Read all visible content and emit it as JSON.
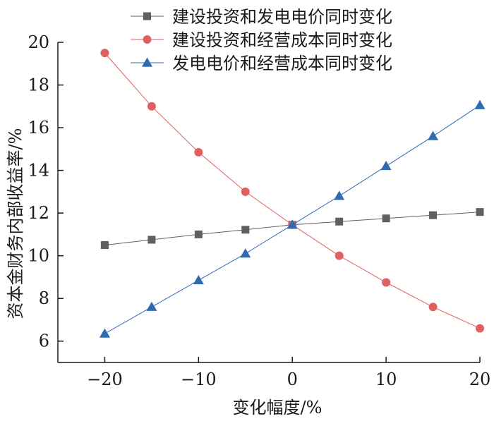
{
  "chart_data": {
    "type": "line",
    "title": "",
    "xlabel": "变化幅度/%",
    "ylabel": "资本金财务内部收益率/%",
    "xlim": [
      -25,
      20
    ],
    "ylim": [
      5,
      20
    ],
    "x": [
      -20,
      -15,
      -10,
      -5,
      0,
      5,
      10,
      15,
      20
    ],
    "x_ticks": [
      -20,
      -10,
      0,
      10,
      20
    ],
    "x_tick_labels": [
      "−20",
      "−10",
      "0",
      "10",
      "20"
    ],
    "y_ticks": [
      6,
      8,
      10,
      12,
      14,
      16,
      18,
      20
    ],
    "y_tick_labels": [
      "6",
      "8",
      "10",
      "12",
      "14",
      "16",
      "18",
      "20"
    ],
    "grid": false,
    "legend_position": "top-right",
    "series": [
      {
        "name": "建设投资和发电电价同时变化",
        "marker": "square",
        "color": "#606060",
        "values": [
          10.5,
          10.75,
          11.0,
          11.22,
          11.45,
          11.6,
          11.75,
          11.9,
          12.05
        ]
      },
      {
        "name": "建设投资和经营成本同时变化",
        "marker": "circle",
        "color": "#e06060",
        "values": [
          19.5,
          17.0,
          14.85,
          13.0,
          11.45,
          10.0,
          8.75,
          7.6,
          6.6
        ]
      },
      {
        "name": "发电电价和经营成本同时变化",
        "marker": "triangle",
        "color": "#2e6bb0",
        "values": [
          6.35,
          7.6,
          8.85,
          10.1,
          11.45,
          12.8,
          14.2,
          15.6,
          17.05
        ]
      }
    ]
  }
}
